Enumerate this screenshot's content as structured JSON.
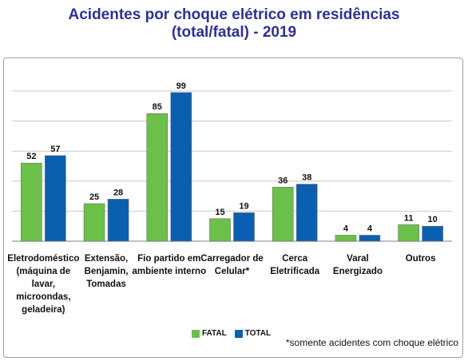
{
  "chart_data": {
    "type": "bar",
    "title_line1": "Acidentes por choque elétrico em residências",
    "title_line2": "(total/fatal) - 2019",
    "categories": [
      [
        "Eletrodoméstico",
        "(máquina de",
        "lavar,",
        "microondas,",
        "geladeira)"
      ],
      [
        "Extensão,",
        "Benjamin,",
        "Tomadas"
      ],
      [
        "Fio partido em",
        "ambiente interno"
      ],
      [
        "Carregador de",
        "Celular*"
      ],
      [
        "Cerca",
        "Eletrificada"
      ],
      [
        "Varal",
        "Energizado"
      ],
      [
        "Outros"
      ]
    ],
    "series": [
      {
        "name": "FATAL",
        "color": "#6cc04a",
        "values": [
          52,
          25,
          85,
          15,
          36,
          4,
          11
        ]
      },
      {
        "name": "TOTAL",
        "color": "#0b5fb0",
        "values": [
          57,
          28,
          99,
          19,
          38,
          4,
          10
        ]
      }
    ],
    "ylim": [
      0,
      100
    ],
    "grid": true,
    "legend_position": "bottom-center"
  },
  "footnote": "*somente acidentes com choque elétrico"
}
